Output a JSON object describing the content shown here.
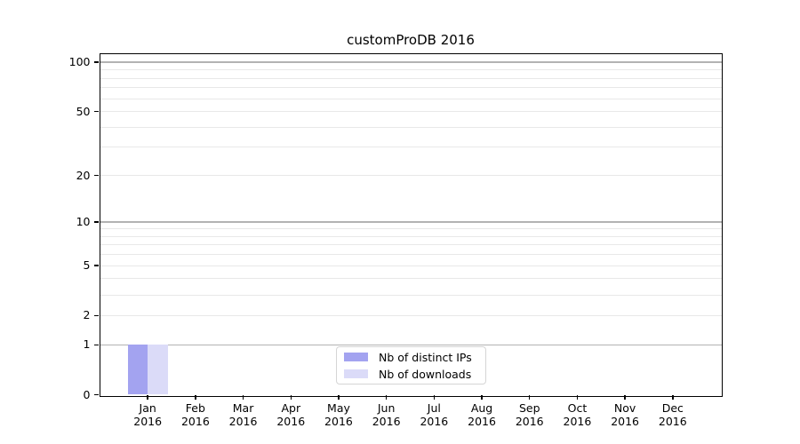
{
  "figure": {
    "title": "customProDB 2016",
    "background": "#ffffff"
  },
  "chart_data": {
    "type": "bar",
    "title": "customProDB 2016",
    "xlabel": "",
    "ylabel": "",
    "categories": [
      "Jan 2016",
      "Feb 2016",
      "Mar 2016",
      "Apr 2016",
      "May 2016",
      "Jun 2016",
      "Jul 2016",
      "Aug 2016",
      "Sep 2016",
      "Oct 2016",
      "Nov 2016",
      "Dec 2016"
    ],
    "series": [
      {
        "name": "Nb of distinct IPs",
        "color": "#a3a3f0",
        "values": [
          1,
          0,
          0,
          0,
          0,
          0,
          0,
          0,
          0,
          0,
          0,
          0
        ]
      },
      {
        "name": "Nb of downloads",
        "color": "#dbdbf8",
        "values": [
          1,
          0,
          0,
          0,
          0,
          0,
          0,
          0,
          0,
          0,
          0,
          0
        ]
      }
    ],
    "y_scale": "log1p",
    "ylim": [
      0,
      112.8
    ],
    "y_ticks": [
      0,
      1,
      2,
      5,
      10,
      20,
      50,
      100
    ],
    "y_major_gridlines": [
      1,
      10,
      100
    ],
    "y_minor_gridlines": [
      2,
      3,
      4,
      5,
      6,
      7,
      8,
      9,
      20,
      30,
      40,
      50,
      60,
      70,
      80,
      90
    ],
    "grid": true,
    "legend_position": "inside bottom-center"
  },
  "colors": {
    "axis": "#000000",
    "major_grid": "#b3b3b3",
    "minor_grid": "#e8e8e8",
    "legend_border": "#d5d5d5",
    "text": "#000000"
  }
}
